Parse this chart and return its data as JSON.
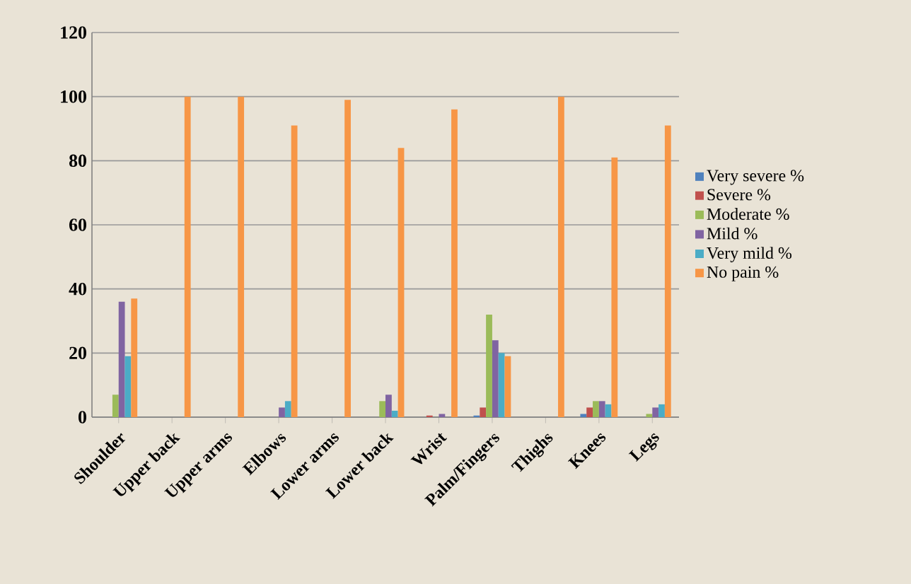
{
  "chart_data": {
    "type": "bar",
    "categories": [
      "Shoulder",
      "Upper back",
      "Upper arms",
      "Elbows",
      "Lower arms",
      "Lower back",
      "Wrist",
      "Palm/Fingers",
      "Thighs",
      "Knees",
      "Legs"
    ],
    "series": [
      {
        "name": "Very severe %",
        "color": "#4f81bd",
        "values": [
          0,
          0,
          0,
          0,
          0,
          0,
          0,
          0.5,
          0,
          1,
          0
        ]
      },
      {
        "name": "Severe %",
        "color": "#c0504d",
        "values": [
          0,
          0,
          0,
          0,
          0,
          0,
          0.5,
          3,
          0,
          3,
          0
        ]
      },
      {
        "name": "Moderate %",
        "color": "#9bbb59",
        "values": [
          7,
          0,
          0,
          0,
          0,
          5,
          0,
          32,
          0,
          5,
          1
        ]
      },
      {
        "name": "Mild  %",
        "color": "#8064a2",
        "values": [
          36,
          0,
          0,
          3,
          0,
          7,
          1,
          24,
          0,
          5,
          3
        ]
      },
      {
        "name": "Very mild  %",
        "color": "#4bacc6",
        "values": [
          19,
          0,
          0,
          5,
          0,
          2,
          0,
          20,
          0,
          4,
          4
        ]
      },
      {
        "name": "No pain %",
        "color": "#f79646",
        "values": [
          37,
          100,
          100,
          91,
          99,
          84,
          96,
          19,
          100,
          81,
          91
        ]
      }
    ],
    "ylim": [
      0,
      120
    ],
    "yticks": [
      0,
      20,
      40,
      60,
      80,
      100,
      120
    ],
    "grid": "y",
    "legend": "right"
  }
}
